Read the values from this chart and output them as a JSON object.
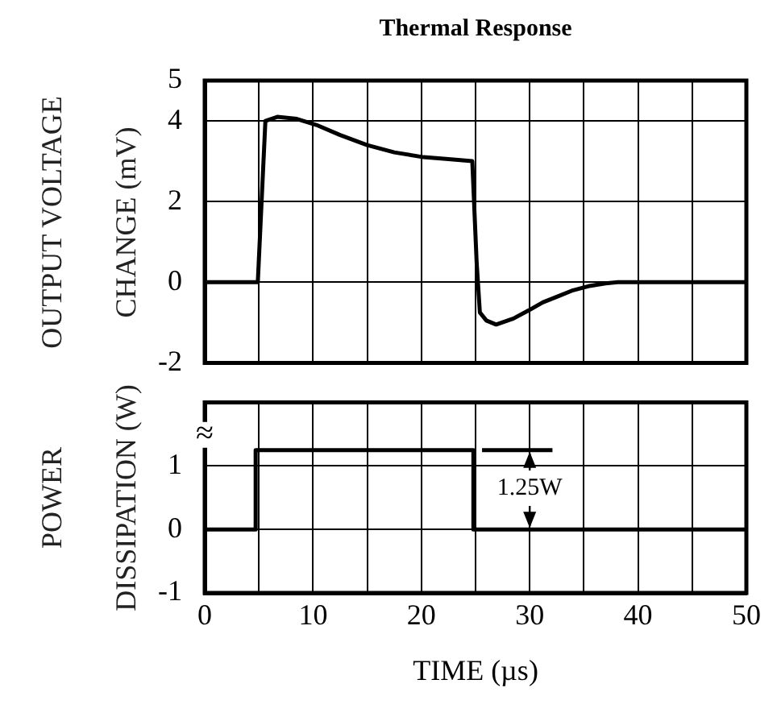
{
  "chart_data": [
    {
      "type": "line",
      "title": "Thermal Response",
      "ylabel": "OUTPUT VOLTAGE CHANGE (mV)",
      "series": [
        {
          "color": "#000000",
          "x": [
            0,
            4.9,
            5.6,
            6.7,
            8.5,
            10.3,
            12.5,
            15,
            17.5,
            20.2,
            22.5,
            24.7,
            25.1,
            25.4,
            26,
            26.9,
            28.5,
            29.9,
            31.2,
            32.6,
            34,
            35.4,
            37,
            38.1,
            50
          ],
          "values": [
            0,
            0,
            4,
            4.1,
            4.05,
            3.9,
            3.65,
            3.4,
            3.22,
            3.1,
            3.05,
            3,
            0.5,
            -0.75,
            -0.95,
            -1.05,
            -0.9,
            -0.7,
            -0.5,
            -0.35,
            -0.2,
            -0.1,
            -0.03,
            0,
            0
          ]
        }
      ],
      "xlim": [
        0,
        50
      ],
      "xticks": [
        0,
        {
          "value": 5,
          "label": null
        },
        10,
        {
          "value": 15,
          "label": null
        },
        20,
        {
          "value": 25,
          "label": null
        },
        30,
        {
          "value": 35,
          "label": null
        },
        40,
        {
          "value": 45,
          "label": null
        },
        50
      ],
      "ylim": [
        -2,
        5
      ],
      "yticks": [
        -2,
        0,
        2,
        4,
        5
      ],
      "tick_labels": "y",
      "grid": true,
      "legend": false,
      "marker": "none",
      "line_style": "solid"
    },
    {
      "type": "line",
      "ylabel": "POWER DISSIPATION (W)",
      "xlabel": "TIME (µs)",
      "series": [
        {
          "color": "#000000",
          "x": [
            0,
            4.7,
            4.7,
            24.8,
            24.8,
            50
          ],
          "values": [
            0,
            0,
            1.25,
            1.25,
            0,
            0
          ]
        }
      ],
      "xlim": [
        0,
        50
      ],
      "xticks": [
        0,
        {
          "value": 5,
          "label": null
        },
        10,
        {
          "value": 15,
          "label": null
        },
        20,
        {
          "value": 25,
          "label": null
        },
        30,
        {
          "value": 35,
          "label": null
        },
        40,
        {
          "value": 45,
          "label": null
        },
        50
      ],
      "ylim": [
        -1,
        2
      ],
      "yticks": [
        -1,
        0,
        1
      ],
      "grid": true,
      "legend": false,
      "marker": "none",
      "line_style": "solid",
      "annotations": [
        "≈",
        "1.25W"
      ]
    }
  ]
}
